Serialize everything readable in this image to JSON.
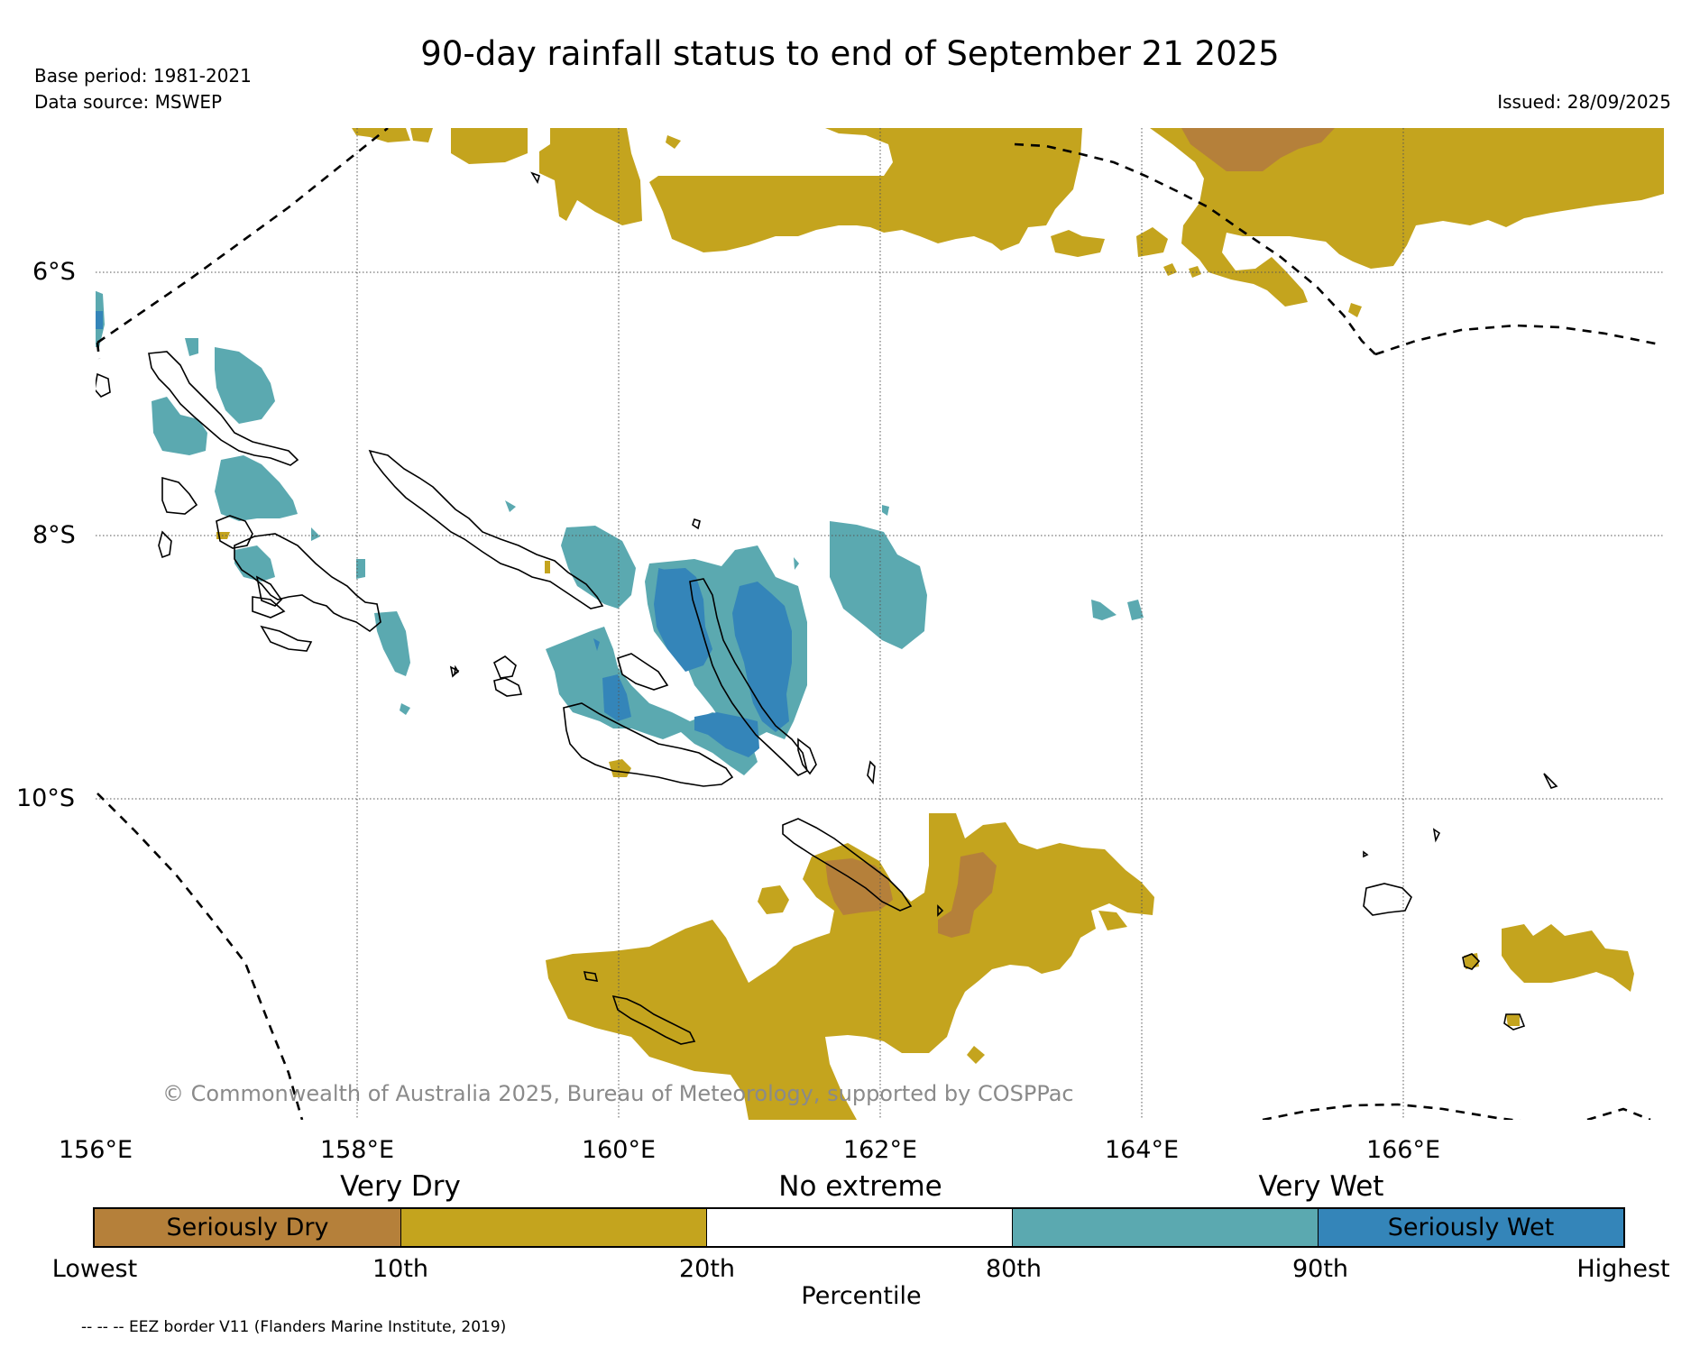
{
  "title": "90-day rainfall status to end of September 21 2025",
  "base_period": "Base period: 1981-2021",
  "data_source": "Data source: MSWEP",
  "issued": "Issued: 28/09/2025",
  "copyright": "© Commonwealth of Australia 2025, Bureau of Meteorology, supported by COSPPac",
  "lat_labels": [
    "6°S",
    "8°S",
    "10°S"
  ],
  "lon_labels": [
    "156°E",
    "158°E",
    "160°E",
    "162°E",
    "164°E",
    "166°E"
  ],
  "legend": {
    "headings": [
      "Very Dry",
      "No extreme",
      "Very Wet"
    ],
    "segments": [
      {
        "label": "Seriously Dry",
        "color": "#b5803a"
      },
      {
        "label": "",
        "color": "#c4a41e"
      },
      {
        "label": "",
        "color": "#ffffff"
      },
      {
        "label": "",
        "color": "#5ba9b0"
      },
      {
        "label": "Seriously Wet",
        "color": "#3485b9"
      }
    ],
    "percentile_labels": [
      "Lowest",
      "10th",
      "20th",
      "80th",
      "90th",
      "Highest"
    ],
    "axis_label": "Percentile"
  },
  "footnote": "-- -- -- EEZ border V11 (Flanders Marine Institute, 2019)",
  "colors": {
    "seriously_dry": "#b5803a",
    "very_dry": "#c4a41e",
    "very_wet": "#5ba9b0",
    "seriously_wet": "#3485b9"
  }
}
